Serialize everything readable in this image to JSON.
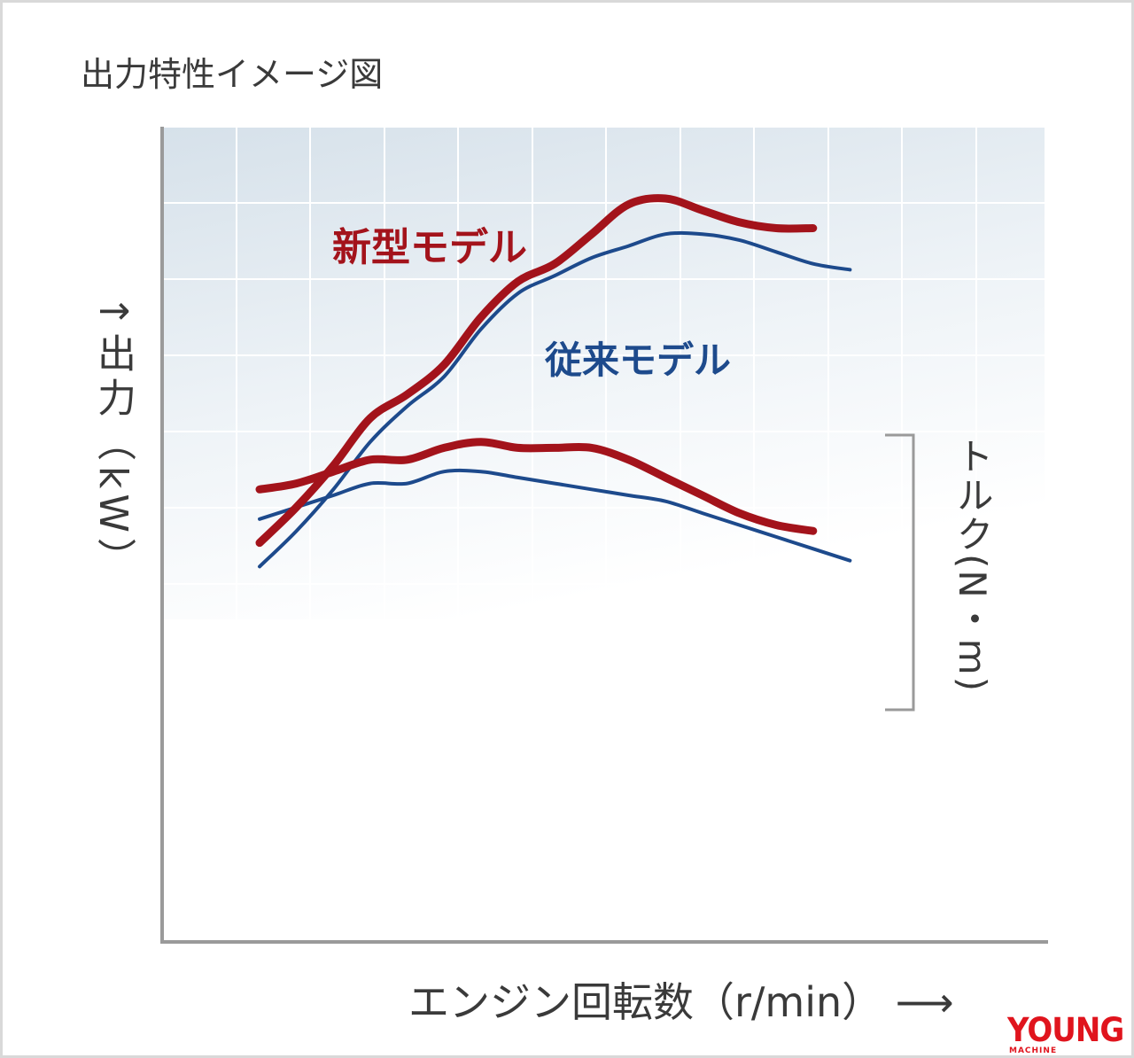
{
  "chart_data": {
    "type": "line",
    "title": "出力特性イメージ図",
    "xlabel": "エンジン回転数（r/min）",
    "ylabel": "出力（kW）",
    "y2label": "トルク(N・m)",
    "x_arrow": "⟶",
    "y_arrow": "↑",
    "grid": true,
    "ticks": false,
    "series": [
      {
        "name": "新型モデル",
        "metric": "power",
        "color": "#a3131b",
        "x": [
          0,
          0.5,
          1.0,
          1.5,
          2.0,
          2.5,
          3.0,
          3.5,
          4.0,
          4.5,
          5.0,
          5.5,
          6.0,
          6.5,
          7.0,
          7.5
        ],
        "values": [
          1.2,
          1.8,
          2.5,
          3.3,
          3.7,
          4.2,
          5.0,
          5.6,
          5.9,
          6.4,
          6.9,
          7.0,
          6.8,
          6.6,
          6.5,
          6.5
        ]
      },
      {
        "name": "新型モデル",
        "metric": "torque",
        "color": "#a3131b",
        "x": [
          0,
          0.5,
          1.0,
          1.5,
          2.0,
          2.5,
          3.0,
          3.5,
          4.0,
          4.5,
          5.0,
          5.5,
          6.0,
          6.5,
          7.0,
          7.5
        ],
        "values": [
          2.1,
          2.2,
          2.4,
          2.6,
          2.6,
          2.8,
          2.9,
          2.8,
          2.8,
          2.8,
          2.6,
          2.3,
          2.0,
          1.7,
          1.5,
          1.4
        ]
      },
      {
        "name": "従来モデル",
        "metric": "power",
        "color": "#1d4a8c",
        "x": [
          0,
          0.5,
          1.0,
          1.5,
          2.0,
          2.5,
          3.0,
          3.5,
          4.0,
          4.5,
          5.0,
          5.5,
          6.0,
          6.5,
          7.0,
          7.5,
          8.0
        ],
        "values": [
          0.8,
          1.4,
          2.1,
          2.9,
          3.5,
          4.0,
          4.8,
          5.4,
          5.7,
          6.0,
          6.2,
          6.4,
          6.4,
          6.3,
          6.1,
          5.9,
          5.8
        ]
      },
      {
        "name": "従来モデル",
        "metric": "torque",
        "color": "#1d4a8c",
        "x": [
          0,
          0.5,
          1.0,
          1.5,
          2.0,
          2.5,
          3.0,
          3.5,
          4.0,
          4.5,
          5.0,
          5.5,
          6.0,
          6.5,
          7.0,
          7.5,
          8.0
        ],
        "values": [
          1.6,
          1.8,
          2.0,
          2.2,
          2.2,
          2.4,
          2.4,
          2.3,
          2.2,
          2.1,
          2.0,
          1.9,
          1.7,
          1.5,
          1.3,
          1.1,
          0.9
        ]
      }
    ],
    "legend": "inline"
  },
  "watermark": {
    "brand": "YOUNG",
    "sub": "MACHINE"
  },
  "colors": {
    "grid_line": "#ffffff",
    "axis": "#9a9a9a",
    "bracket": "#9a9a9a",
    "bg_top": "#dfe8ef",
    "bg_bottom": "#ffffff"
  }
}
